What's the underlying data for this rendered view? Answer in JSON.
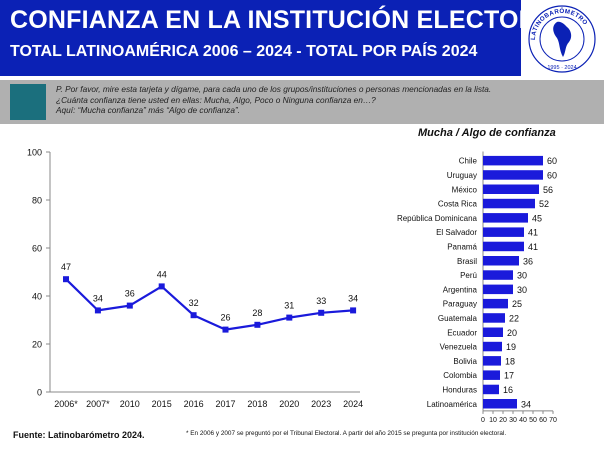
{
  "header": {
    "title": "CONFIANZA EN LA INSTITUCIÓN ELECTORAL",
    "subtitle": "TOTAL LATINOAMÉRICA 2006 – 2024 - TOTAL POR PAÍS 2024",
    "logo_top_text": "LATINOBARÓMETRO",
    "logo_years": "1995 · 2024",
    "background_color": "#0b21b5"
  },
  "question": {
    "lines": [
      "P. Por favor, mire esta tarjeta y dígame, para cada uno de los grupos/instituciones o personas mencionadas en la lista.",
      "¿Cuánta confianza tiene usted en ellas: Mucha, Algo, Poco o Ninguna confianza en…?",
      "Aquí: “Mucha confianza” más “Algo de confianza”."
    ]
  },
  "footer": {
    "source": "Fuente: Latinobarómetro 2024.",
    "note": "* En 2006 y 2007  se preguntó por el Tribunal Electoral. A partir del año 2015 se pregunta por institución electoral."
  },
  "chart_data": [
    {
      "type": "line",
      "title": "",
      "xlabel": "",
      "ylabel": "",
      "x": [
        "2006*",
        "2007*",
        "2010",
        "2015",
        "2016",
        "2017",
        "2018",
        "2020",
        "2023",
        "2024"
      ],
      "values": [
        47,
        34,
        36,
        44,
        32,
        26,
        28,
        31,
        33,
        34
      ],
      "ylim": [
        0,
        100
      ],
      "yticks": [
        0,
        20,
        40,
        60,
        80,
        100
      ],
      "grid": false,
      "color": "#1a1adb"
    },
    {
      "type": "bar",
      "orientation": "horizontal",
      "title": "Mucha / Algo de confianza",
      "categories": [
        "Chile",
        "Uruguay",
        "México",
        "Costa Rica",
        "República Dominicana",
        "El Salvador",
        "Panamá",
        "Brasil",
        "Perú",
        "Argentina",
        "Paraguay",
        "Guatemala",
        "Ecuador",
        "Venezuela",
        "Bolivia",
        "Colombia",
        "Honduras",
        "Latinoamérica"
      ],
      "values": [
        60,
        60,
        56,
        52,
        45,
        41,
        41,
        36,
        30,
        30,
        25,
        22,
        20,
        19,
        18,
        17,
        16,
        34
      ],
      "xlim": [
        0,
        70
      ],
      "xticks": [
        0,
        10,
        20,
        30,
        40,
        50,
        60,
        70
      ],
      "grid": false,
      "color": "#1a1adb"
    }
  ]
}
